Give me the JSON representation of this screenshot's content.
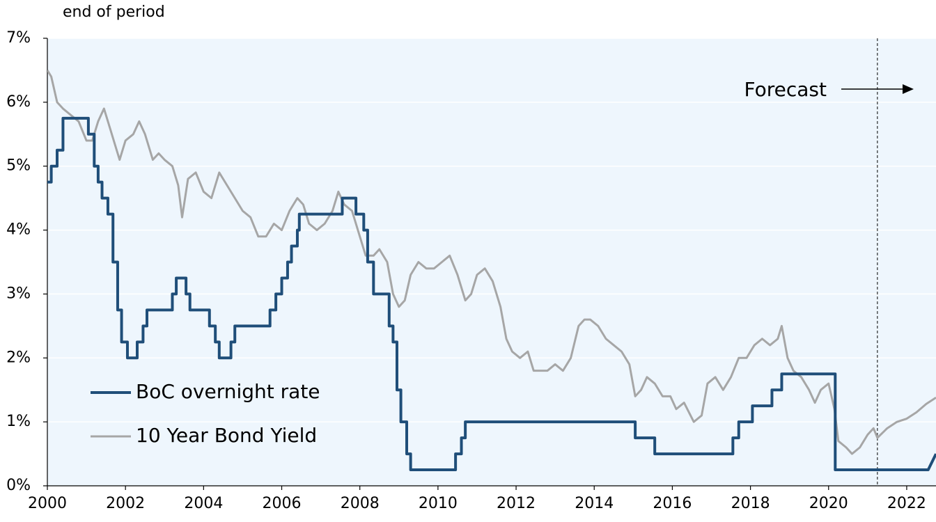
{
  "chart_data": {
    "type": "line",
    "subtitle": "end of period",
    "annotation": "Forecast",
    "forecast_start": 2021.25,
    "xlim": [
      2000,
      2022.75
    ],
    "xticks": [
      2000,
      2002,
      2004,
      2006,
      2008,
      2010,
      2012,
      2014,
      2016,
      2018,
      2020,
      2022
    ],
    "ylim": [
      0,
      7
    ],
    "yticks": [
      {
        "value": 0,
        "label": "0%"
      },
      {
        "value": 1,
        "label": "1%"
      },
      {
        "value": 2,
        "label": "2%"
      },
      {
        "value": 3,
        "label": "3%"
      },
      {
        "value": 4,
        "label": "4%"
      },
      {
        "value": 5,
        "label": "5%"
      },
      {
        "value": 6,
        "label": "6%"
      },
      {
        "value": 7,
        "label": "7%"
      }
    ],
    "grid": true,
    "legend": "lower-left",
    "series": [
      {
        "name": "BoC overnight rate",
        "color": "#1f4e79",
        "x": [
          2000.0,
          2000.1,
          2000.1,
          2000.25,
          2000.25,
          2000.4,
          2000.4,
          2001.05,
          2001.05,
          2001.2,
          2001.2,
          2001.3,
          2001.3,
          2001.4,
          2001.4,
          2001.55,
          2001.55,
          2001.68,
          2001.68,
          2001.8,
          2001.8,
          2001.9,
          2001.9,
          2002.05,
          2002.05,
          2002.3,
          2002.3,
          2002.45,
          2002.45,
          2002.55,
          2002.55,
          2003.2,
          2003.2,
          2003.3,
          2003.3,
          2003.55,
          2003.55,
          2003.65,
          2003.65,
          2004.15,
          2004.15,
          2004.3,
          2004.3,
          2004.4,
          2004.4,
          2004.7,
          2004.7,
          2004.8,
          2004.8,
          2005.7,
          2005.7,
          2005.85,
          2005.85,
          2006.0,
          2006.0,
          2006.15,
          2006.15,
          2006.25,
          2006.25,
          2006.4,
          2006.4,
          2006.45,
          2006.45,
          2007.55,
          2007.55,
          2007.9,
          2007.9,
          2008.1,
          2008.1,
          2008.2,
          2008.2,
          2008.35,
          2008.35,
          2008.75,
          2008.75,
          2008.85,
          2008.85,
          2008.95,
          2008.95,
          2009.05,
          2009.05,
          2009.2,
          2009.2,
          2009.3,
          2009.3,
          2010.45,
          2010.45,
          2010.6,
          2010.6,
          2010.7,
          2010.7,
          2015.05,
          2015.05,
          2015.55,
          2015.55,
          2017.55,
          2017.55,
          2017.7,
          2017.7,
          2018.05,
          2018.05,
          2018.55,
          2018.55,
          2018.8,
          2018.8,
          2020.17,
          2020.17,
          2022.55,
          2022.75
        ],
        "values": [
          4.75,
          4.75,
          5.0,
          5.0,
          5.25,
          5.25,
          5.75,
          5.75,
          5.5,
          5.5,
          5.0,
          5.0,
          4.75,
          4.75,
          4.5,
          4.5,
          4.25,
          4.25,
          3.5,
          3.5,
          2.75,
          2.75,
          2.25,
          2.25,
          2.0,
          2.0,
          2.25,
          2.25,
          2.5,
          2.5,
          2.75,
          2.75,
          3.0,
          3.0,
          3.25,
          3.25,
          3.0,
          3.0,
          2.75,
          2.75,
          2.5,
          2.5,
          2.25,
          2.25,
          2.0,
          2.0,
          2.25,
          2.25,
          2.5,
          2.5,
          2.75,
          2.75,
          3.0,
          3.0,
          3.25,
          3.25,
          3.5,
          3.5,
          3.75,
          3.75,
          4.0,
          4.0,
          4.25,
          4.25,
          4.5,
          4.5,
          4.25,
          4.25,
          4.0,
          4.0,
          3.5,
          3.5,
          3.0,
          3.0,
          2.5,
          2.5,
          2.25,
          2.25,
          1.5,
          1.5,
          1.0,
          1.0,
          0.5,
          0.5,
          0.25,
          0.25,
          0.5,
          0.5,
          0.75,
          0.75,
          1.0,
          1.0,
          0.75,
          0.75,
          0.5,
          0.5,
          0.75,
          0.75,
          1.0,
          1.0,
          1.25,
          1.25,
          1.5,
          1.5,
          1.75,
          1.75,
          0.25,
          0.25,
          0.5
        ]
      },
      {
        "name": "10 Year Bond Yield",
        "color": "#a6a6a6",
        "x": [
          2000.0,
          2000.1,
          2000.25,
          2000.4,
          2000.6,
          2000.8,
          2001.0,
          2001.15,
          2001.3,
          2001.45,
          2001.6,
          2001.75,
          2001.85,
          2002.0,
          2002.2,
          2002.35,
          2002.5,
          2002.7,
          2002.85,
          2003.0,
          2003.2,
          2003.35,
          2003.45,
          2003.6,
          2003.8,
          2004.0,
          2004.2,
          2004.4,
          2004.6,
          2004.8,
          2005.0,
          2005.2,
          2005.4,
          2005.6,
          2005.8,
          2006.0,
          2006.2,
          2006.4,
          2006.55,
          2006.7,
          2006.9,
          2007.1,
          2007.3,
          2007.45,
          2007.6,
          2007.8,
          2008.0,
          2008.15,
          2008.35,
          2008.5,
          2008.7,
          2008.85,
          2009.0,
          2009.15,
          2009.3,
          2009.5,
          2009.7,
          2009.9,
          2010.1,
          2010.3,
          2010.5,
          2010.7,
          2010.85,
          2011.0,
          2011.2,
          2011.4,
          2011.6,
          2011.75,
          2011.9,
          2012.1,
          2012.3,
          2012.45,
          2012.6,
          2012.8,
          2013.0,
          2013.2,
          2013.4,
          2013.6,
          2013.75,
          2013.9,
          2014.1,
          2014.3,
          2014.5,
          2014.7,
          2014.9,
          2015.05,
          2015.2,
          2015.35,
          2015.55,
          2015.75,
          2015.95,
          2016.1,
          2016.3,
          2016.55,
          2016.75,
          2016.9,
          2017.1,
          2017.3,
          2017.5,
          2017.7,
          2017.9,
          2018.1,
          2018.3,
          2018.5,
          2018.7,
          2018.8,
          2018.95,
          2019.1,
          2019.3,
          2019.5,
          2019.65,
          2019.8,
          2020.0,
          2020.15,
          2020.25,
          2020.45,
          2020.6,
          2020.8,
          2021.0,
          2021.15,
          2021.25,
          2021.5,
          2021.75,
          2022.0,
          2022.25,
          2022.5,
          2022.75
        ],
        "values": [
          6.5,
          6.4,
          6.0,
          5.9,
          5.8,
          5.7,
          5.4,
          5.4,
          5.7,
          5.9,
          5.6,
          5.3,
          5.1,
          5.4,
          5.5,
          5.7,
          5.5,
          5.1,
          5.2,
          5.1,
          5.0,
          4.7,
          4.2,
          4.8,
          4.9,
          4.6,
          4.5,
          4.9,
          4.7,
          4.5,
          4.3,
          4.2,
          3.9,
          3.9,
          4.1,
          4.0,
          4.3,
          4.5,
          4.4,
          4.1,
          4.0,
          4.1,
          4.3,
          4.6,
          4.4,
          4.3,
          3.9,
          3.6,
          3.6,
          3.7,
          3.5,
          3.0,
          2.8,
          2.9,
          3.3,
          3.5,
          3.4,
          3.4,
          3.5,
          3.6,
          3.3,
          2.9,
          3.0,
          3.3,
          3.4,
          3.2,
          2.8,
          2.3,
          2.1,
          2.0,
          2.1,
          1.8,
          1.8,
          1.8,
          1.9,
          1.8,
          2.0,
          2.5,
          2.6,
          2.6,
          2.5,
          2.3,
          2.2,
          2.1,
          1.9,
          1.4,
          1.5,
          1.7,
          1.6,
          1.4,
          1.4,
          1.2,
          1.3,
          1.0,
          1.1,
          1.6,
          1.7,
          1.5,
          1.7,
          2.0,
          2.0,
          2.2,
          2.3,
          2.2,
          2.3,
          2.5,
          2.0,
          1.8,
          1.7,
          1.5,
          1.3,
          1.5,
          1.6,
          1.2,
          0.7,
          0.6,
          0.5,
          0.6,
          0.8,
          0.9,
          0.75,
          0.9,
          1.0,
          1.05,
          1.15,
          1.28,
          1.38
        ]
      }
    ]
  }
}
